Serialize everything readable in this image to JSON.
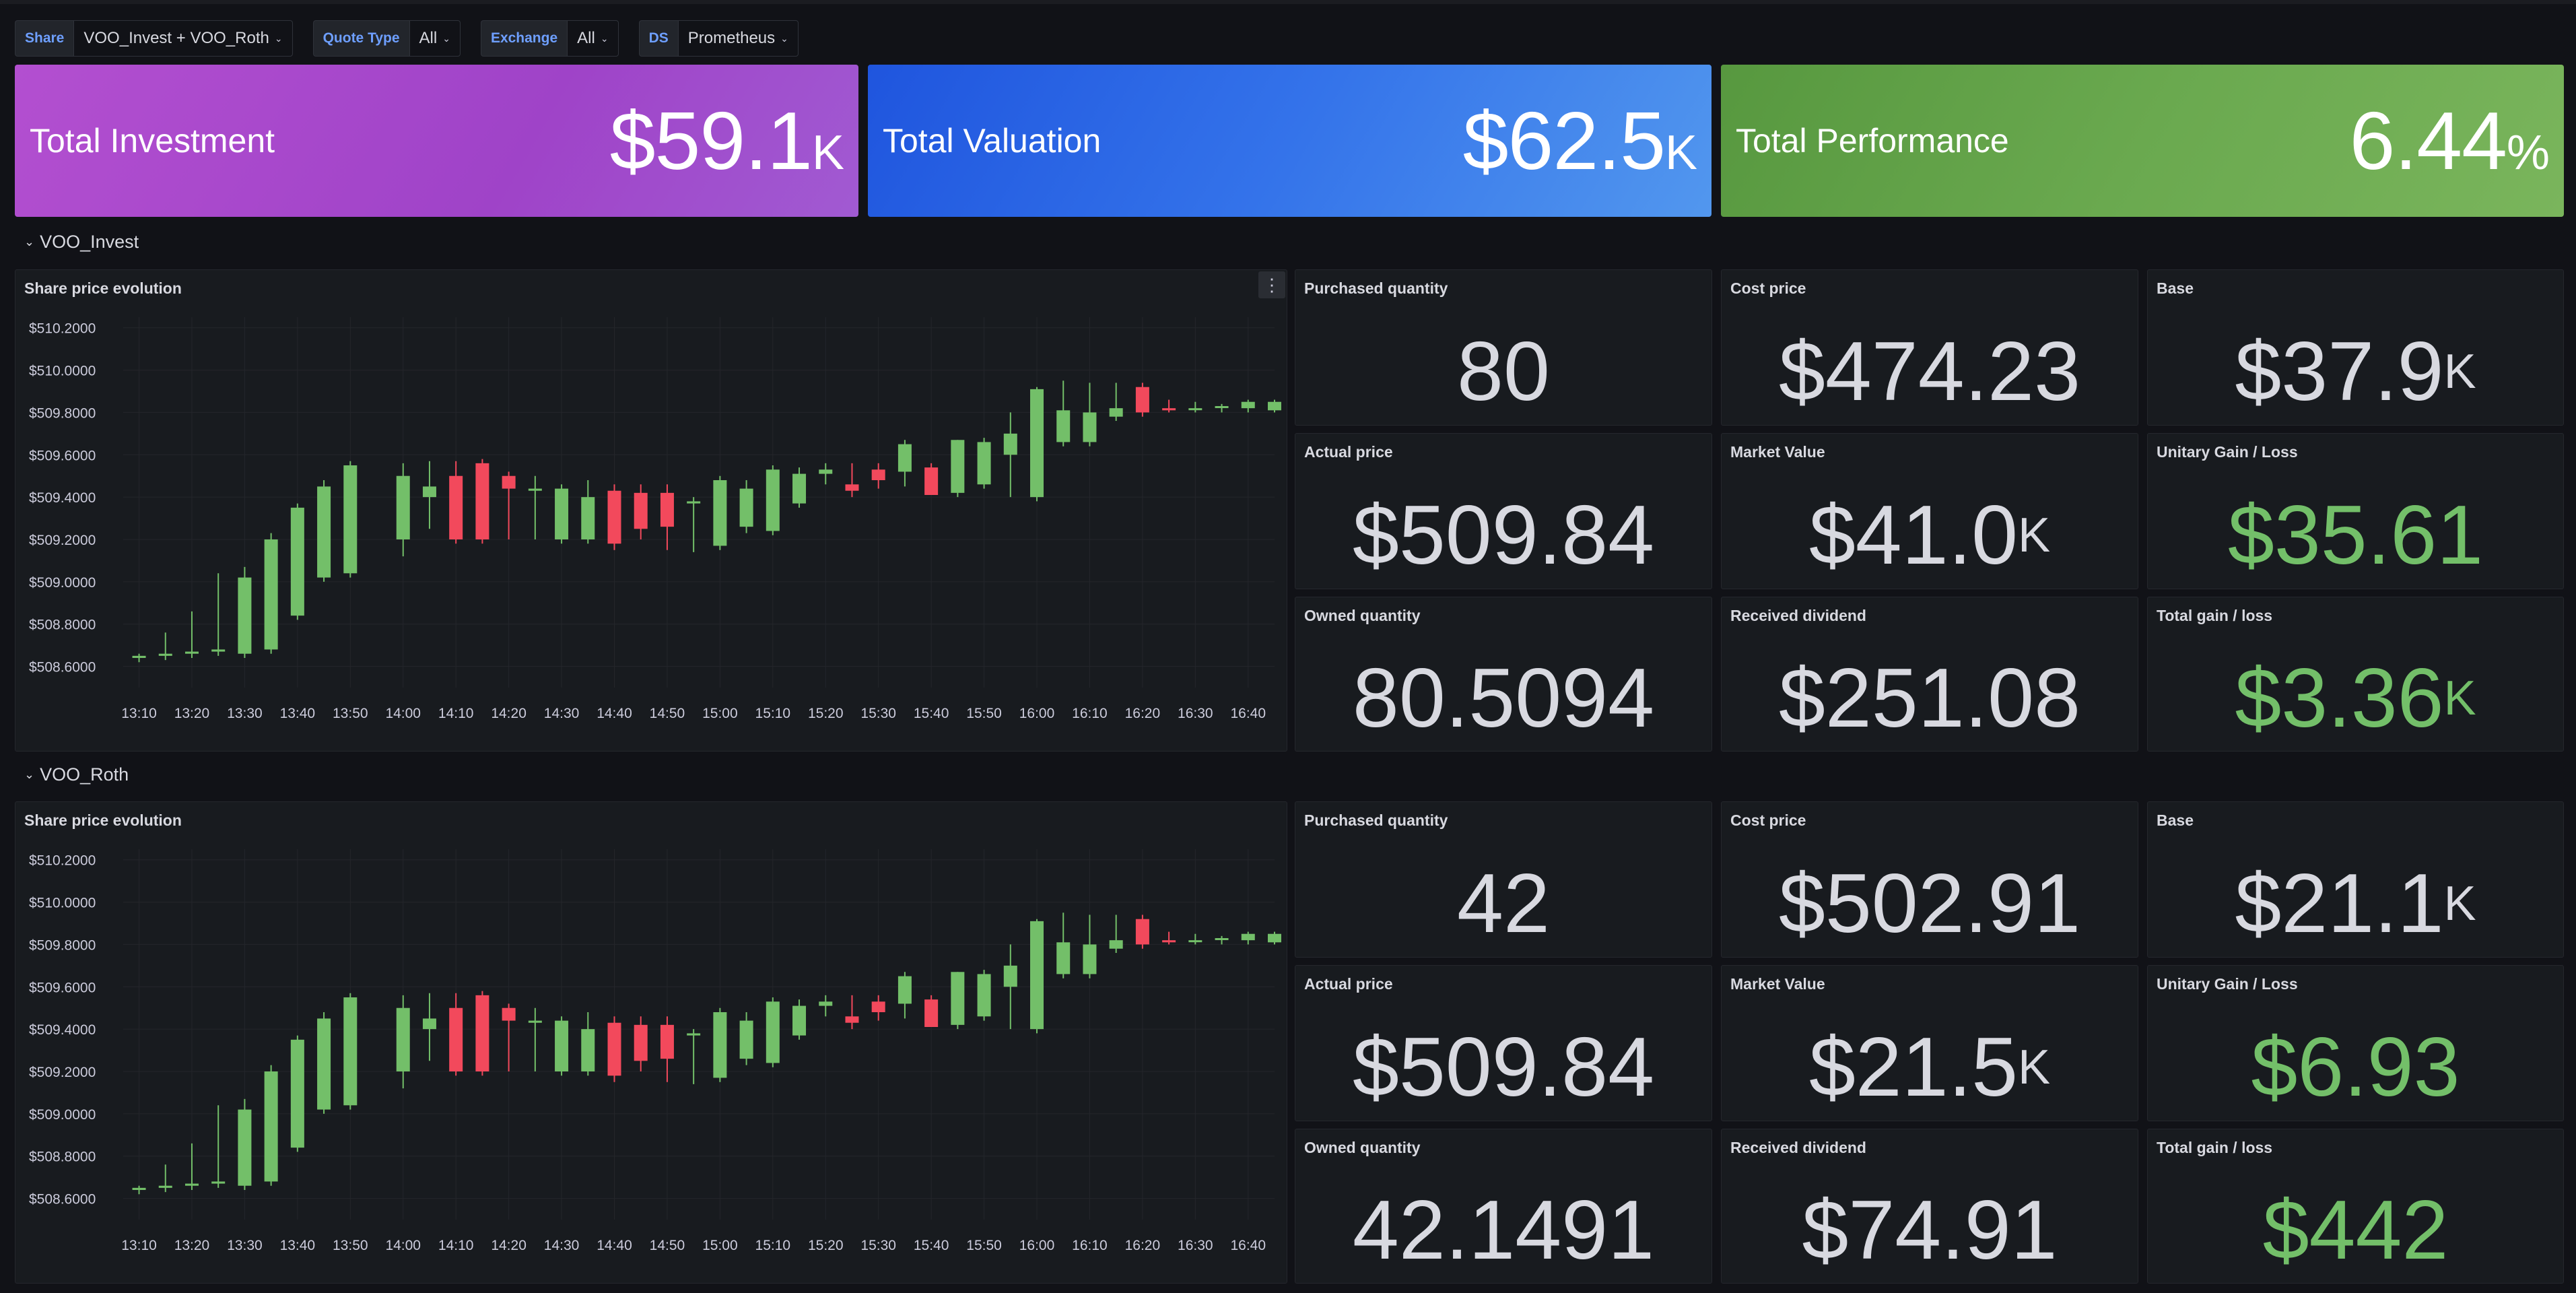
{
  "variables": [
    {
      "label": "Share",
      "value": "VOO_Invest + VOO_Roth"
    },
    {
      "label": "Quote Type",
      "value": "All"
    },
    {
      "label": "Exchange",
      "value": "All"
    },
    {
      "label": "DS",
      "value": "Prometheus"
    }
  ],
  "summary": {
    "investment": {
      "title": "Total Investment",
      "value": "$59.1",
      "unit": "K"
    },
    "valuation": {
      "title": "Total Valuation",
      "value": "$62.5",
      "unit": "K"
    },
    "performance": {
      "title": "Total Performance",
      "value": "6.44",
      "unit": "%"
    }
  },
  "rows": [
    {
      "name": "VOO_Invest",
      "chart_title": "Share price evolution",
      "stats": {
        "purchased_qty": {
          "title": "Purchased quantity",
          "value": "80",
          "unit": ""
        },
        "cost_price": {
          "title": "Cost price",
          "value": "$474.23",
          "unit": ""
        },
        "base": {
          "title": "Base",
          "value": "$37.9",
          "unit": "K"
        },
        "actual_price": {
          "title": "Actual price",
          "value": "$509.84",
          "unit": ""
        },
        "market_value": {
          "title": "Market Value",
          "value": "$41.0",
          "unit": "K"
        },
        "unitary_gain": {
          "title": "Unitary Gain / Loss",
          "value": "$35.61",
          "unit": ""
        },
        "owned_qty": {
          "title": "Owned quantity",
          "value": "80.5094",
          "unit": ""
        },
        "received_dividend": {
          "title": "Received dividend",
          "value": "$251.08",
          "unit": ""
        },
        "total_gain": {
          "title": "Total gain / loss",
          "value": "$3.36",
          "unit": "K"
        }
      }
    },
    {
      "name": "VOO_Roth",
      "chart_title": "Share price evolution",
      "stats": {
        "purchased_qty": {
          "title": "Purchased quantity",
          "value": "42",
          "unit": ""
        },
        "cost_price": {
          "title": "Cost price",
          "value": "$502.91",
          "unit": ""
        },
        "base": {
          "title": "Base",
          "value": "$21.1",
          "unit": "K"
        },
        "actual_price": {
          "title": "Actual price",
          "value": "$509.84",
          "unit": ""
        },
        "market_value": {
          "title": "Market Value",
          "value": "$21.5",
          "unit": "K"
        },
        "unitary_gain": {
          "title": "Unitary Gain / Loss",
          "value": "$6.93",
          "unit": ""
        },
        "owned_qty": {
          "title": "Owned quantity",
          "value": "42.1491",
          "unit": ""
        },
        "received_dividend": {
          "title": "Received dividend",
          "value": "$74.91",
          "unit": ""
        },
        "total_gain": {
          "title": "Total gain / loss",
          "value": "$442",
          "unit": ""
        }
      }
    }
  ],
  "colors": {
    "up": "#73bf69",
    "down": "#f2495c",
    "investment": "#a348cc",
    "valuation": "#2f6be6",
    "performance": "#6aa94f"
  },
  "chart_data": {
    "type": "candlestick",
    "title": "Share price evolution",
    "ylim": [
      508.5,
      510.25
    ],
    "y_ticks": [
      "$510.2000",
      "$510.0000",
      "$509.8000",
      "$509.6000",
      "$509.4000",
      "$509.2000",
      "$509.0000",
      "$508.8000",
      "$508.6000"
    ],
    "y_tick_values": [
      510.2,
      510.0,
      509.8,
      509.6,
      509.4,
      509.2,
      509.0,
      508.8,
      508.6
    ],
    "x_ticks": [
      "13:10",
      "13:20",
      "13:30",
      "13:40",
      "13:50",
      "14:00",
      "14:10",
      "14:20",
      "14:30",
      "14:40",
      "14:50",
      "15:00",
      "15:10",
      "15:20",
      "15:30",
      "15:40",
      "15:50",
      "16:00",
      "16:10",
      "16:20",
      "16:30",
      "16:40"
    ],
    "x_range": [
      "13:07",
      "16:45"
    ],
    "candles": [
      {
        "t": "13:10",
        "o": 508.64,
        "h": 508.66,
        "l": 508.62,
        "c": 508.65
      },
      {
        "t": "13:15",
        "o": 508.65,
        "h": 508.76,
        "l": 508.63,
        "c": 508.66
      },
      {
        "t": "13:20",
        "o": 508.66,
        "h": 508.86,
        "l": 508.64,
        "c": 508.67
      },
      {
        "t": "13:25",
        "o": 508.67,
        "h": 509.04,
        "l": 508.65,
        "c": 508.68
      },
      {
        "t": "13:30",
        "o": 508.66,
        "h": 509.07,
        "l": 508.64,
        "c": 509.02
      },
      {
        "t": "13:35",
        "o": 508.68,
        "h": 509.23,
        "l": 508.66,
        "c": 509.2
      },
      {
        "t": "13:40",
        "o": 508.84,
        "h": 509.37,
        "l": 508.82,
        "c": 509.35
      },
      {
        "t": "13:45",
        "o": 509.02,
        "h": 509.48,
        "l": 509.0,
        "c": 509.45
      },
      {
        "t": "13:50",
        "o": 509.04,
        "h": 509.57,
        "l": 509.02,
        "c": 509.55
      },
      {
        "t": "14:00",
        "o": 509.2,
        "h": 509.56,
        "l": 509.12,
        "c": 509.5
      },
      {
        "t": "14:05",
        "o": 509.4,
        "h": 509.57,
        "l": 509.25,
        "c": 509.45
      },
      {
        "t": "14:10",
        "o": 509.5,
        "h": 509.57,
        "l": 509.18,
        "c": 509.2
      },
      {
        "t": "14:15",
        "o": 509.56,
        "h": 509.58,
        "l": 509.18,
        "c": 509.2
      },
      {
        "t": "14:20",
        "o": 509.5,
        "h": 509.52,
        "l": 509.2,
        "c": 509.44
      },
      {
        "t": "14:25",
        "o": 509.43,
        "h": 509.5,
        "l": 509.2,
        "c": 509.44
      },
      {
        "t": "14:30",
        "o": 509.2,
        "h": 509.46,
        "l": 509.18,
        "c": 509.44
      },
      {
        "t": "14:35",
        "o": 509.2,
        "h": 509.48,
        "l": 509.18,
        "c": 509.4
      },
      {
        "t": "14:40",
        "o": 509.43,
        "h": 509.46,
        "l": 509.15,
        "c": 509.18
      },
      {
        "t": "14:45",
        "o": 509.42,
        "h": 509.46,
        "l": 509.2,
        "c": 509.25
      },
      {
        "t": "14:50",
        "o": 509.42,
        "h": 509.46,
        "l": 509.15,
        "c": 509.26
      },
      {
        "t": "14:55",
        "o": 509.37,
        "h": 509.4,
        "l": 509.14,
        "c": 509.38
      },
      {
        "t": "15:00",
        "o": 509.17,
        "h": 509.5,
        "l": 509.15,
        "c": 509.48
      },
      {
        "t": "15:05",
        "o": 509.26,
        "h": 509.48,
        "l": 509.23,
        "c": 509.44
      },
      {
        "t": "15:10",
        "o": 509.24,
        "h": 509.55,
        "l": 509.22,
        "c": 509.53
      },
      {
        "t": "15:15",
        "o": 509.37,
        "h": 509.54,
        "l": 509.35,
        "c": 509.51
      },
      {
        "t": "15:20",
        "o": 509.51,
        "h": 509.56,
        "l": 509.46,
        "c": 509.53
      },
      {
        "t": "15:25",
        "o": 509.46,
        "h": 509.56,
        "l": 509.4,
        "c": 509.43
      },
      {
        "t": "15:30",
        "o": 509.53,
        "h": 509.56,
        "l": 509.44,
        "c": 509.48
      },
      {
        "t": "15:35",
        "o": 509.52,
        "h": 509.67,
        "l": 509.45,
        "c": 509.65
      },
      {
        "t": "15:40",
        "o": 509.54,
        "h": 509.56,
        "l": 509.41,
        "c": 509.41
      },
      {
        "t": "15:45",
        "o": 509.42,
        "h": 509.67,
        "l": 509.4,
        "c": 509.67
      },
      {
        "t": "15:50",
        "o": 509.46,
        "h": 509.68,
        "l": 509.44,
        "c": 509.66
      },
      {
        "t": "15:55",
        "o": 509.6,
        "h": 509.8,
        "l": 509.4,
        "c": 509.7
      },
      {
        "t": "16:00",
        "o": 509.4,
        "h": 509.92,
        "l": 509.38,
        "c": 509.91
      },
      {
        "t": "16:05",
        "o": 509.66,
        "h": 509.95,
        "l": 509.64,
        "c": 509.81
      },
      {
        "t": "16:10",
        "o": 509.66,
        "h": 509.94,
        "l": 509.64,
        "c": 509.8
      },
      {
        "t": "16:15",
        "o": 509.78,
        "h": 509.94,
        "l": 509.76,
        "c": 509.82
      },
      {
        "t": "16:20",
        "o": 509.92,
        "h": 509.94,
        "l": 509.78,
        "c": 509.8
      },
      {
        "t": "16:25",
        "o": 509.82,
        "h": 509.86,
        "l": 509.8,
        "c": 509.81
      },
      {
        "t": "16:30",
        "o": 509.82,
        "h": 509.85,
        "l": 509.8,
        "c": 509.82
      },
      {
        "t": "16:35",
        "o": 509.83,
        "h": 509.84,
        "l": 509.8,
        "c": 509.83
      },
      {
        "t": "16:40",
        "o": 509.82,
        "h": 509.86,
        "l": 509.8,
        "c": 509.85
      },
      {
        "t": "16:45",
        "o": 509.81,
        "h": 509.86,
        "l": 509.8,
        "c": 509.85
      }
    ]
  }
}
